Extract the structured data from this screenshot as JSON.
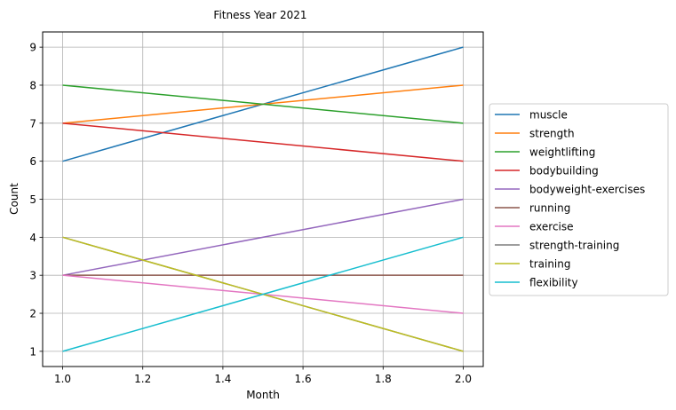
{
  "chart_data": {
    "type": "line",
    "title": "Fitness Year 2021",
    "xlabel": "Month",
    "ylabel": "Count",
    "xlim": [
      0.95,
      2.05
    ],
    "ylim": [
      0.6,
      9.4
    ],
    "xticks": [
      1.0,
      1.2,
      1.4,
      1.6,
      1.8,
      2.0
    ],
    "xtick_labels": [
      "1.0",
      "1.2",
      "1.4",
      "1.6",
      "1.8",
      "2.0"
    ],
    "yticks": [
      1,
      2,
      3,
      4,
      5,
      6,
      7,
      8,
      9
    ],
    "ytick_labels": [
      "1",
      "2",
      "3",
      "4",
      "5",
      "6",
      "7",
      "8",
      "9"
    ],
    "grid": true,
    "legend_position": "right",
    "series": [
      {
        "name": "muscle",
        "color": "#1f77b4",
        "x": [
          1,
          2
        ],
        "y": [
          6,
          9
        ]
      },
      {
        "name": "strength",
        "color": "#ff7f0e",
        "x": [
          1,
          2
        ],
        "y": [
          7,
          8
        ]
      },
      {
        "name": "weightlifting",
        "color": "#2ca02c",
        "x": [
          1,
          2
        ],
        "y": [
          8,
          7
        ]
      },
      {
        "name": "bodybuilding",
        "color": "#d62728",
        "x": [
          1,
          2
        ],
        "y": [
          7,
          6
        ]
      },
      {
        "name": "bodyweight-exercises",
        "color": "#9467bd",
        "x": [
          1,
          2
        ],
        "y": [
          3,
          5
        ]
      },
      {
        "name": "running",
        "color": "#8c564b",
        "x": [
          1,
          2
        ],
        "y": [
          3,
          3
        ]
      },
      {
        "name": "exercise",
        "color": "#e377c2",
        "x": [
          1,
          2
        ],
        "y": [
          3,
          2
        ]
      },
      {
        "name": "strength-training",
        "color": "#7f7f7f",
        "x": [
          1,
          2
        ],
        "y": [
          4,
          1
        ]
      },
      {
        "name": "training",
        "color": "#bcbd22",
        "x": [
          1,
          2
        ],
        "y": [
          4,
          1
        ]
      },
      {
        "name": "flexibility",
        "color": "#17becf",
        "x": [
          1,
          2
        ],
        "y": [
          1,
          4
        ]
      }
    ]
  }
}
